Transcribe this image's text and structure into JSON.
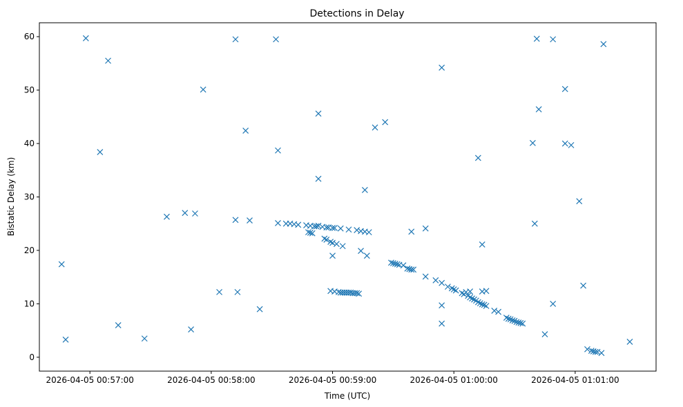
{
  "chart_data": {
    "type": "scatter",
    "title": "Detections in Delay",
    "xlabel": "Time (UTC)",
    "ylabel": "Bistatic Delay (km)",
    "marker": "x",
    "color": "#1f77b4",
    "grid": false,
    "x_axis_type": "time",
    "xlim": [
      "2026-04-05 00:56:35",
      "2026-04-05 01:01:40"
    ],
    "ylim": [
      -2.6,
      62.6
    ],
    "x_ticks": [
      "2026-04-05 00:57:00",
      "2026-04-05 00:58:00",
      "2026-04-05 00:59:00",
      "2026-04-05 01:00:00",
      "2026-04-05 01:01:00"
    ],
    "y_ticks": [
      0,
      10,
      20,
      30,
      40,
      50,
      60
    ],
    "points": [
      {
        "x": "00:56:46",
        "y": 17.4
      },
      {
        "x": "00:56:48",
        "y": 3.3
      },
      {
        "x": "00:56:58",
        "y": 59.7
      },
      {
        "x": "00:57:05",
        "y": 38.4
      },
      {
        "x": "00:57:09",
        "y": 55.5
      },
      {
        "x": "00:57:14",
        "y": 6.0
      },
      {
        "x": "00:57:27",
        "y": 3.5
      },
      {
        "x": "00:57:38",
        "y": 26.3
      },
      {
        "x": "00:57:47",
        "y": 27.0
      },
      {
        "x": "00:57:50",
        "y": 5.2
      },
      {
        "x": "00:57:52",
        "y": 26.9
      },
      {
        "x": "00:57:56",
        "y": 50.1
      },
      {
        "x": "00:58:04",
        "y": 12.2
      },
      {
        "x": "00:58:12",
        "y": 59.5
      },
      {
        "x": "00:58:12",
        "y": 25.7
      },
      {
        "x": "00:58:13",
        "y": 12.2
      },
      {
        "x": "00:58:17",
        "y": 42.4
      },
      {
        "x": "00:58:19",
        "y": 25.6
      },
      {
        "x": "00:58:24",
        "y": 9.0
      },
      {
        "x": "00:58:32",
        "y": 59.5
      },
      {
        "x": "00:58:33",
        "y": 38.7
      },
      {
        "x": "00:58:33",
        "y": 25.1
      },
      {
        "x": "00:58:37",
        "y": 25.0
      },
      {
        "x": "00:58:39",
        "y": 25.0
      },
      {
        "x": "00:58:41",
        "y": 24.9
      },
      {
        "x": "00:58:43",
        "y": 24.8
      },
      {
        "x": "00:58:47",
        "y": 24.7
      },
      {
        "x": "00:58:49",
        "y": 24.6
      },
      {
        "x": "00:58:51",
        "y": 24.5
      },
      {
        "x": "00:58:52",
        "y": 24.5
      },
      {
        "x": "00:58:53",
        "y": 24.6
      },
      {
        "x": "00:58:55",
        "y": 24.4
      },
      {
        "x": "00:58:57",
        "y": 24.3
      },
      {
        "x": "00:58:58",
        "y": 24.3
      },
      {
        "x": "00:59:00",
        "y": 24.2
      },
      {
        "x": "00:59:01",
        "y": 24.2
      },
      {
        "x": "00:59:04",
        "y": 24.1
      },
      {
        "x": "00:58:48",
        "y": 23.4
      },
      {
        "x": "00:58:49",
        "y": 23.3
      },
      {
        "x": "00:58:50",
        "y": 23.2
      },
      {
        "x": "00:58:53",
        "y": 33.4
      },
      {
        "x": "00:58:53",
        "y": 45.6
      },
      {
        "x": "00:58:56",
        "y": 22.2
      },
      {
        "x": "00:58:57",
        "y": 22.0
      },
      {
        "x": "00:58:59",
        "y": 21.6
      },
      {
        "x": "00:59:00",
        "y": 21.4
      },
      {
        "x": "00:59:02",
        "y": 21.2
      },
      {
        "x": "00:59:00",
        "y": 19.0
      },
      {
        "x": "00:59:05",
        "y": 20.8
      },
      {
        "x": "00:58:59",
        "y": 12.4
      },
      {
        "x": "00:59:01",
        "y": 12.3
      },
      {
        "x": "00:59:03",
        "y": 12.2
      },
      {
        "x": "00:59:04",
        "y": 12.1
      },
      {
        "x": "00:59:05",
        "y": 12.1
      },
      {
        "x": "00:59:06",
        "y": 12.1
      },
      {
        "x": "00:59:07",
        "y": 12.1
      },
      {
        "x": "00:59:08",
        "y": 12.1
      },
      {
        "x": "00:59:09",
        "y": 12.1
      },
      {
        "x": "00:59:10",
        "y": 12.0
      },
      {
        "x": "00:59:11",
        "y": 12.0
      },
      {
        "x": "00:59:12",
        "y": 12.0
      },
      {
        "x": "00:59:13",
        "y": 11.9
      },
      {
        "x": "00:59:08",
        "y": 23.9
      },
      {
        "x": "00:59:12",
        "y": 23.8
      },
      {
        "x": "00:59:14",
        "y": 23.6
      },
      {
        "x": "00:59:16",
        "y": 23.5
      },
      {
        "x": "00:59:18",
        "y": 23.4
      },
      {
        "x": "00:59:14",
        "y": 19.9
      },
      {
        "x": "00:59:16",
        "y": 31.3
      },
      {
        "x": "00:59:17",
        "y": 19.0
      },
      {
        "x": "00:59:21",
        "y": 43.0
      },
      {
        "x": "00:59:26",
        "y": 44.0
      },
      {
        "x": "00:59:29",
        "y": 17.7
      },
      {
        "x": "00:59:30",
        "y": 17.6
      },
      {
        "x": "00:59:31",
        "y": 17.5
      },
      {
        "x": "00:59:32",
        "y": 17.4
      },
      {
        "x": "00:59:33",
        "y": 17.3
      },
      {
        "x": "00:59:35",
        "y": 17.2
      },
      {
        "x": "00:59:37",
        "y": 16.6
      },
      {
        "x": "00:59:38",
        "y": 16.5
      },
      {
        "x": "00:59:39",
        "y": 16.4
      },
      {
        "x": "00:59:40",
        "y": 16.4
      },
      {
        "x": "00:59:39",
        "y": 23.5
      },
      {
        "x": "00:59:46",
        "y": 24.1
      },
      {
        "x": "00:59:46",
        "y": 15.1
      },
      {
        "x": "00:59:51",
        "y": 14.4
      },
      {
        "x": "00:59:54",
        "y": 54.2
      },
      {
        "x": "00:59:54",
        "y": 13.9
      },
      {
        "x": "00:59:54",
        "y": 9.7
      },
      {
        "x": "00:59:54",
        "y": 6.3
      },
      {
        "x": "00:59:57",
        "y": 13.2
      },
      {
        "x": "00:59:59",
        "y": 12.9
      },
      {
        "x": "01:00:00",
        "y": 12.7
      },
      {
        "x": "01:00:01",
        "y": 12.5
      },
      {
        "x": "01:00:04",
        "y": 12.0
      },
      {
        "x": "01:00:05",
        "y": 11.8
      },
      {
        "x": "01:00:06",
        "y": 12.2
      },
      {
        "x": "01:00:07",
        "y": 11.5
      },
      {
        "x": "01:00:08",
        "y": 11.2
      },
      {
        "x": "01:00:09",
        "y": 11.0
      },
      {
        "x": "01:00:10",
        "y": 10.8
      },
      {
        "x": "01:00:08",
        "y": 12.3
      },
      {
        "x": "01:00:11",
        "y": 10.6
      },
      {
        "x": "01:00:12",
        "y": 10.3
      },
      {
        "x": "01:00:13",
        "y": 10.1
      },
      {
        "x": "01:00:14",
        "y": 9.9
      },
      {
        "x": "01:00:15",
        "y": 9.8
      },
      {
        "x": "01:00:16",
        "y": 9.6
      },
      {
        "x": "01:00:14",
        "y": 12.3
      },
      {
        "x": "01:00:16",
        "y": 12.4
      },
      {
        "x": "01:00:12",
        "y": 37.3
      },
      {
        "x": "01:00:14",
        "y": 21.1
      },
      {
        "x": "01:00:20",
        "y": 8.7
      },
      {
        "x": "01:00:22",
        "y": 8.5
      },
      {
        "x": "01:00:26",
        "y": 7.4
      },
      {
        "x": "01:00:27",
        "y": 7.2
      },
      {
        "x": "01:00:28",
        "y": 7.1
      },
      {
        "x": "01:00:29",
        "y": 6.9
      },
      {
        "x": "01:00:30",
        "y": 6.8
      },
      {
        "x": "01:00:31",
        "y": 6.6
      },
      {
        "x": "01:00:32",
        "y": 6.5
      },
      {
        "x": "01:00:33",
        "y": 6.4
      },
      {
        "x": "01:00:34",
        "y": 6.3
      },
      {
        "x": "01:00:39",
        "y": 40.1
      },
      {
        "x": "01:00:41",
        "y": 59.6
      },
      {
        "x": "01:00:42",
        "y": 46.4
      },
      {
        "x": "01:00:40",
        "y": 25.0
      },
      {
        "x": "01:00:45",
        "y": 4.3
      },
      {
        "x": "01:00:49",
        "y": 59.5
      },
      {
        "x": "01:00:49",
        "y": 10.0
      },
      {
        "x": "01:00:55",
        "y": 50.2
      },
      {
        "x": "01:00:55",
        "y": 40.0
      },
      {
        "x": "01:00:58",
        "y": 39.7
      },
      {
        "x": "01:01:02",
        "y": 29.2
      },
      {
        "x": "01:01:04",
        "y": 13.4
      },
      {
        "x": "01:01:06",
        "y": 1.5
      },
      {
        "x": "01:01:08",
        "y": 1.2
      },
      {
        "x": "01:01:09",
        "y": 1.1
      },
      {
        "x": "01:01:10",
        "y": 1.0
      },
      {
        "x": "01:01:11",
        "y": 1.0
      },
      {
        "x": "01:01:13",
        "y": 0.8
      },
      {
        "x": "01:01:14",
        "y": 58.6
      },
      {
        "x": "01:01:27",
        "y": 2.9
      }
    ]
  }
}
